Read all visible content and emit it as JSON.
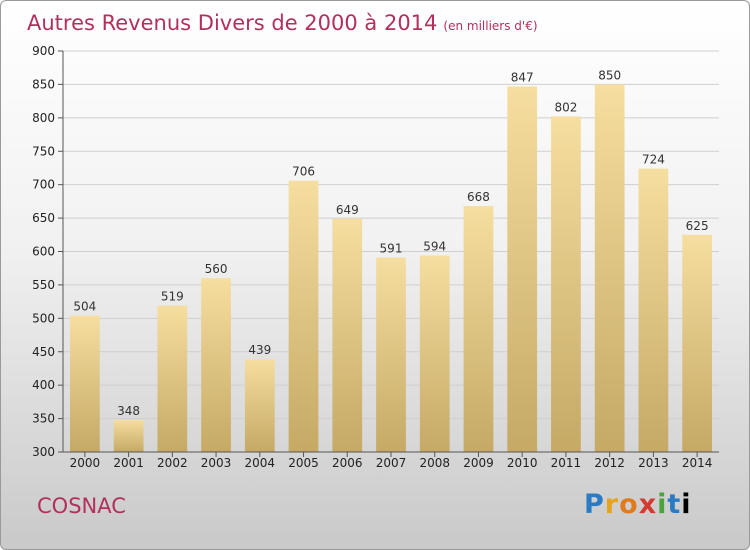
{
  "header": {
    "title": "Autres Revenus Divers de 2000 à 2014",
    "unit": "(en milliers d'€)"
  },
  "footer": {
    "city": "COSNAC",
    "logo": "Proxiti"
  },
  "colors": {
    "title": "#b3305a",
    "bar_top": "#f6dea0",
    "bar_bottom": "#c5a965",
    "grid": "#cfcfcf"
  },
  "chart_data": {
    "type": "bar",
    "title": "Autres Revenus Divers de 2000 à 2014",
    "xlabel": "",
    "ylabel": "",
    "categories": [
      "2000",
      "2001",
      "2002",
      "2003",
      "2004",
      "2005",
      "2006",
      "2007",
      "2008",
      "2009",
      "2010",
      "2011",
      "2012",
      "2013",
      "2014"
    ],
    "values": [
      504,
      348,
      519,
      560,
      439,
      706,
      649,
      591,
      594,
      668,
      847,
      802,
      850,
      724,
      625
    ],
    "ylim": [
      300,
      900
    ],
    "yticks": [
      300,
      350,
      400,
      450,
      500,
      550,
      600,
      650,
      700,
      750,
      800,
      850,
      900
    ],
    "grid": true,
    "legend": "none"
  }
}
